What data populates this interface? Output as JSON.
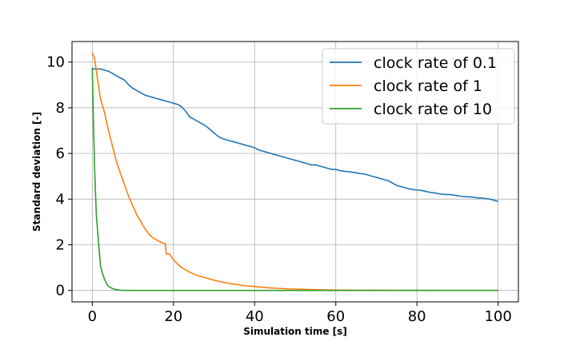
{
  "chart_data": {
    "type": "line",
    "title": "",
    "xlabel": "Simulation time [s]",
    "ylabel": "Standard deviation [-]",
    "xlim": [
      -5,
      105
    ],
    "ylim": [
      -0.5,
      10.9
    ],
    "xticks": [
      0,
      20,
      40,
      60,
      80,
      100
    ],
    "yticks": [
      0,
      2,
      4,
      6,
      8,
      10
    ],
    "xtick_labels": [
      "0",
      "20",
      "40",
      "60",
      "80",
      "100"
    ],
    "ytick_labels": [
      "0",
      "2",
      "4",
      "6",
      "8",
      "10"
    ],
    "grid": true,
    "legend_position": "top-right",
    "series": [
      {
        "name": "clock rate of 0.1",
        "color": "#1f77b4",
        "x": [
          0,
          2,
          3,
          4,
          5,
          6,
          7,
          8,
          9,
          10,
          11,
          12,
          13,
          14,
          15,
          16,
          17,
          18,
          19,
          20,
          21,
          22,
          23,
          24,
          25,
          26,
          27,
          28,
          29,
          30,
          31,
          32,
          33,
          34,
          35,
          36,
          37,
          38,
          39,
          40,
          41,
          42,
          43,
          44,
          45,
          46,
          47,
          48,
          49,
          50,
          51,
          52,
          53,
          54,
          55,
          56,
          57,
          58,
          59,
          60,
          61,
          62,
          63,
          64,
          65,
          66,
          67,
          68,
          69,
          70,
          71,
          72,
          73,
          74,
          75,
          76,
          77,
          78,
          79,
          80,
          81,
          82,
          83,
          84,
          85,
          86,
          87,
          88,
          89,
          90,
          91,
          92,
          93,
          94,
          95,
          96,
          97,
          98,
          99,
          100
        ],
        "y": [
          9.7,
          9.7,
          9.65,
          9.6,
          9.5,
          9.4,
          9.3,
          9.2,
          9.0,
          8.85,
          8.75,
          8.65,
          8.55,
          8.5,
          8.45,
          8.4,
          8.35,
          8.3,
          8.25,
          8.2,
          8.15,
          8.05,
          7.85,
          7.6,
          7.5,
          7.4,
          7.3,
          7.2,
          7.05,
          6.9,
          6.75,
          6.65,
          6.6,
          6.55,
          6.5,
          6.45,
          6.4,
          6.35,
          6.3,
          6.25,
          6.15,
          6.1,
          6.05,
          6.0,
          5.95,
          5.9,
          5.85,
          5.8,
          5.75,
          5.7,
          5.65,
          5.6,
          5.55,
          5.5,
          5.5,
          5.45,
          5.4,
          5.35,
          5.3,
          5.3,
          5.25,
          5.22,
          5.2,
          5.18,
          5.15,
          5.12,
          5.1,
          5.05,
          5.0,
          4.95,
          4.9,
          4.85,
          4.8,
          4.7,
          4.6,
          4.55,
          4.5,
          4.45,
          4.42,
          4.4,
          4.38,
          4.35,
          4.3,
          4.28,
          4.25,
          4.22,
          4.2,
          4.2,
          4.18,
          4.15,
          4.12,
          4.1,
          4.1,
          4.08,
          4.05,
          4.05,
          4.02,
          4.0,
          3.95,
          3.9
        ]
      },
      {
        "name": "clock rate of 1",
        "color": "#ff7f0e",
        "x": [
          0,
          0.5,
          1,
          1.5,
          2,
          3,
          4,
          5,
          6,
          7,
          8,
          9,
          10,
          11,
          12,
          13,
          14,
          15,
          16,
          17,
          18,
          18.2,
          19,
          20,
          21,
          22,
          23,
          24,
          25,
          26,
          28,
          30,
          32,
          34,
          36,
          38,
          40,
          42,
          44,
          46,
          48,
          50,
          52,
          54,
          56,
          58,
          60,
          65,
          70,
          75,
          80,
          85,
          90,
          95,
          100
        ],
        "y": [
          10.4,
          10.2,
          9.6,
          9.0,
          8.4,
          7.8,
          7.0,
          6.3,
          5.6,
          5.1,
          4.6,
          4.1,
          3.7,
          3.3,
          3.0,
          2.7,
          2.45,
          2.3,
          2.2,
          2.1,
          2.05,
          1.6,
          1.6,
          1.35,
          1.15,
          1.0,
          0.9,
          0.8,
          0.72,
          0.65,
          0.55,
          0.45,
          0.37,
          0.3,
          0.25,
          0.2,
          0.17,
          0.14,
          0.11,
          0.09,
          0.07,
          0.06,
          0.05,
          0.04,
          0.03,
          0.025,
          0.02,
          0.01,
          0.01,
          0.005,
          0.005,
          0.0,
          0.0,
          0.0,
          0.0
        ]
      },
      {
        "name": "clock rate of 10",
        "color": "#2ca02c",
        "x": [
          0,
          0.2,
          0.4,
          0.6,
          0.8,
          1,
          1.5,
          2,
          2.5,
          3,
          3.5,
          4,
          5,
          6,
          7,
          8,
          10,
          15,
          20,
          40,
          60,
          80,
          100
        ],
        "y": [
          9.75,
          8.0,
          6.5,
          5.2,
          4.2,
          3.3,
          2.2,
          1.1,
          0.75,
          0.5,
          0.3,
          0.18,
          0.08,
          0.03,
          0.01,
          0.005,
          0.0,
          0.0,
          0.0,
          0.0,
          0.0,
          0.0,
          0.0
        ]
      }
    ]
  }
}
